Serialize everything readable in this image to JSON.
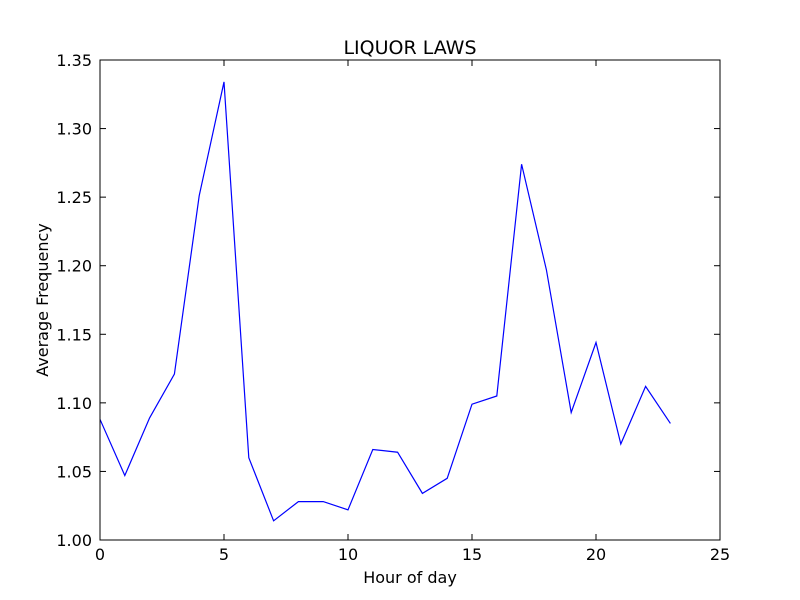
{
  "chart_data": {
    "type": "line",
    "title": "LIQUOR LAWS",
    "xlabel": "Hour of day",
    "ylabel": "Average Frequency",
    "xlim": [
      0,
      25
    ],
    "ylim": [
      1.0,
      1.35
    ],
    "xticks": [
      0,
      5,
      10,
      15,
      20,
      25
    ],
    "xtick_labels": [
      "0",
      "5",
      "10",
      "15",
      "20",
      "25"
    ],
    "yticks": [
      1.0,
      1.05,
      1.1,
      1.15,
      1.2,
      1.25,
      1.3,
      1.35
    ],
    "ytick_labels": [
      "1.00",
      "1.05",
      "1.10",
      "1.15",
      "1.20",
      "1.25",
      "1.30",
      "1.35"
    ],
    "grid": false,
    "legend": false,
    "series": [
      {
        "color": "#0000ff",
        "x": [
          0,
          1,
          2,
          3,
          4,
          5,
          6,
          7,
          8,
          9,
          10,
          11,
          12,
          13,
          14,
          15,
          16,
          17,
          18,
          19,
          20,
          21,
          22,
          23
        ],
        "y": [
          1.088,
          1.047,
          1.089,
          1.121,
          1.251,
          1.334,
          1.06,
          1.014,
          1.028,
          1.028,
          1.022,
          1.066,
          1.064,
          1.034,
          1.045,
          1.099,
          1.105,
          1.274,
          1.197,
          1.093,
          1.144,
          1.07,
          1.112,
          1.085
        ]
      }
    ]
  }
}
